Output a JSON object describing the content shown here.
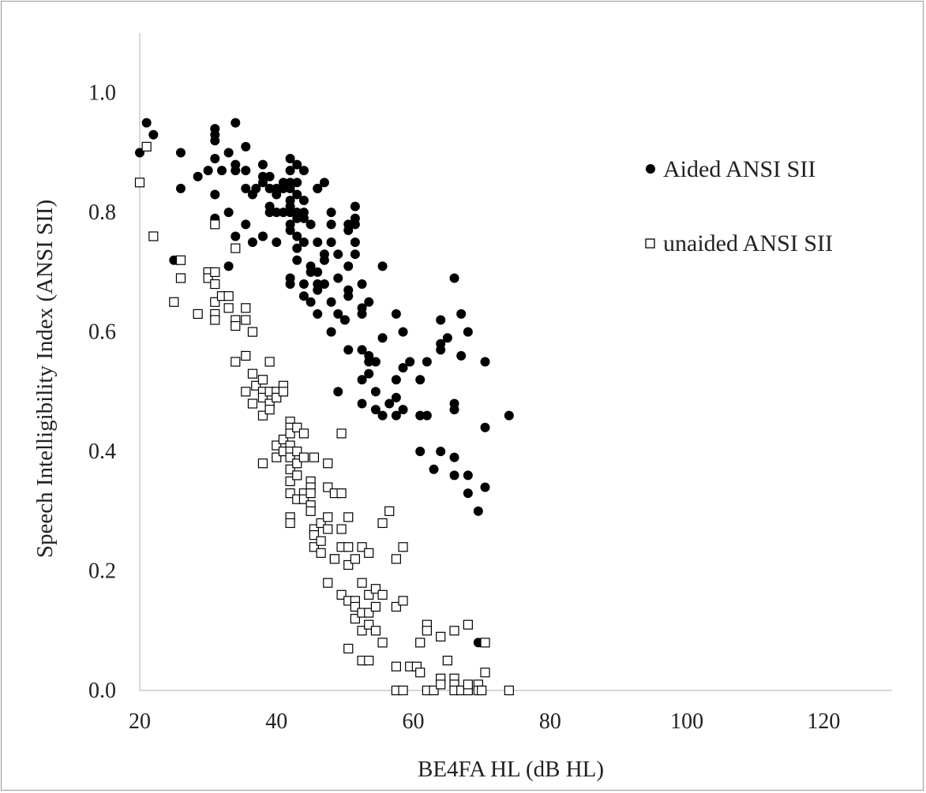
{
  "chart_data": {
    "type": "scatter",
    "title": "",
    "xlabel": "BE4FA HL  (dB HL)",
    "ylabel": "Speech Intelligibility Index (ANSI  SII)",
    "xlim": [
      20,
      130
    ],
    "ylim": [
      0,
      1.1
    ],
    "xticks": [
      "20",
      "40",
      "60",
      "80",
      "100",
      "120"
    ],
    "yticks": [
      "0.0",
      "0.2",
      "0.4",
      "0.6",
      "0.8",
      "1.0"
    ],
    "xtick_values": [
      20,
      40,
      60,
      80,
      100,
      120
    ],
    "ytick_values": [
      0,
      0.2,
      0.4,
      0.6,
      0.8,
      1.0
    ],
    "grid": false,
    "legend_position": "right",
    "series": [
      {
        "name": "Aided ANSI SII",
        "marker": "filled-circle",
        "color": "#000000",
        "points": [
          [
            20,
            0.9
          ],
          [
            21,
            0.95
          ],
          [
            22,
            0.93
          ],
          [
            25,
            0.72
          ],
          [
            26,
            0.9
          ],
          [
            26,
            0.84
          ],
          [
            28.5,
            0.86
          ],
          [
            30,
            0.87
          ],
          [
            31,
            0.94
          ],
          [
            31,
            0.93
          ],
          [
            31,
            0.92
          ],
          [
            31,
            0.89
          ],
          [
            31,
            0.83
          ],
          [
            31,
            0.79
          ],
          [
            31,
            0.7
          ],
          [
            32,
            0.87
          ],
          [
            33,
            0.9
          ],
          [
            33,
            0.8
          ],
          [
            33,
            0.71
          ],
          [
            34,
            0.95
          ],
          [
            34,
            0.88
          ],
          [
            34,
            0.87
          ],
          [
            34,
            0.76
          ],
          [
            35.5,
            0.91
          ],
          [
            35.5,
            0.87
          ],
          [
            35.5,
            0.84
          ],
          [
            35.5,
            0.78
          ],
          [
            36.5,
            0.83
          ],
          [
            36.5,
            0.75
          ],
          [
            37,
            0.84
          ],
          [
            38,
            0.88
          ],
          [
            38,
            0.86
          ],
          [
            38,
            0.85
          ],
          [
            38,
            0.76
          ],
          [
            38,
            0.76
          ],
          [
            39,
            0.86
          ],
          [
            39,
            0.84
          ],
          [
            39,
            0.81
          ],
          [
            39,
            0.8
          ],
          [
            40,
            0.84
          ],
          [
            40,
            0.83
          ],
          [
            40,
            0.8
          ],
          [
            40,
            0.75
          ],
          [
            41,
            0.85
          ],
          [
            41,
            0.84
          ],
          [
            41,
            0.8
          ],
          [
            42,
            0.89
          ],
          [
            42,
            0.87
          ],
          [
            42,
            0.85
          ],
          [
            42,
            0.84
          ],
          [
            42,
            0.82
          ],
          [
            42,
            0.81
          ],
          [
            42,
            0.8
          ],
          [
            42,
            0.78
          ],
          [
            42,
            0.77
          ],
          [
            42,
            0.69
          ],
          [
            42,
            0.68
          ],
          [
            43,
            0.88
          ],
          [
            43,
            0.85
          ],
          [
            43,
            0.83
          ],
          [
            43,
            0.8
          ],
          [
            43,
            0.79
          ],
          [
            43,
            0.76
          ],
          [
            43,
            0.74
          ],
          [
            43,
            0.72
          ],
          [
            44,
            0.87
          ],
          [
            44,
            0.82
          ],
          [
            44,
            0.8
          ],
          [
            44,
            0.79
          ],
          [
            44,
            0.75
          ],
          [
            44,
            0.66
          ],
          [
            44,
            0.68
          ],
          [
            45,
            0.78
          ],
          [
            45,
            0.71
          ],
          [
            45,
            0.7
          ],
          [
            45,
            0.65
          ],
          [
            46,
            0.84
          ],
          [
            46,
            0.84
          ],
          [
            46,
            0.75
          ],
          [
            46,
            0.7
          ],
          [
            46,
            0.68
          ],
          [
            46,
            0.67
          ],
          [
            46,
            0.63
          ],
          [
            47,
            0.85
          ],
          [
            47,
            0.73
          ],
          [
            47,
            0.72
          ],
          [
            47,
            0.68
          ],
          [
            48,
            0.8
          ],
          [
            48,
            0.78
          ],
          [
            48,
            0.75
          ],
          [
            48,
            0.65
          ],
          [
            48,
            0.6
          ],
          [
            49,
            0.73
          ],
          [
            49,
            0.69
          ],
          [
            49,
            0.63
          ],
          [
            49,
            0.5
          ],
          [
            50,
            0.62
          ],
          [
            50,
            0.62
          ],
          [
            50.5,
            0.78
          ],
          [
            50.5,
            0.77
          ],
          [
            50.5,
            0.71
          ],
          [
            50.5,
            0.67
          ],
          [
            50.5,
            0.66
          ],
          [
            50.5,
            0.57
          ],
          [
            51.5,
            0.81
          ],
          [
            51.5,
            0.79
          ],
          [
            51.5,
            0.78
          ],
          [
            51.5,
            0.75
          ],
          [
            51.5,
            0.73
          ],
          [
            52.5,
            0.68
          ],
          [
            52.5,
            0.64
          ],
          [
            52.5,
            0.63
          ],
          [
            52.5,
            0.57
          ],
          [
            52.5,
            0.52
          ],
          [
            52.5,
            0.48
          ],
          [
            53.5,
            0.65
          ],
          [
            53.5,
            0.56
          ],
          [
            53.5,
            0.55
          ],
          [
            53.5,
            0.53
          ],
          [
            54.5,
            0.55
          ],
          [
            54.5,
            0.5
          ],
          [
            54.5,
            0.47
          ],
          [
            55.5,
            0.71
          ],
          [
            55.5,
            0.59
          ],
          [
            55.5,
            0.46
          ],
          [
            56.5,
            0.48
          ],
          [
            57.5,
            0.63
          ],
          [
            57.5,
            0.52
          ],
          [
            57.5,
            0.49
          ],
          [
            57.5,
            0.46
          ],
          [
            58.5,
            0.6
          ],
          [
            58.5,
            0.54
          ],
          [
            58.5,
            0.47
          ],
          [
            59.5,
            0.55
          ],
          [
            61,
            0.52
          ],
          [
            61,
            0.46
          ],
          [
            61,
            0.4
          ],
          [
            62,
            0.55
          ],
          [
            62,
            0.46
          ],
          [
            63,
            0.37
          ],
          [
            64,
            0.62
          ],
          [
            64,
            0.58
          ],
          [
            64,
            0.57
          ],
          [
            64,
            0.4
          ],
          [
            65,
            0.59
          ],
          [
            66,
            0.69
          ],
          [
            66,
            0.48
          ],
          [
            66,
            0.47
          ],
          [
            66,
            0.39
          ],
          [
            66,
            0.36
          ],
          [
            67,
            0.63
          ],
          [
            67,
            0.56
          ],
          [
            68,
            0.6
          ],
          [
            68,
            0.36
          ],
          [
            68,
            0.33
          ],
          [
            69.5,
            0.3
          ],
          [
            70.5,
            0.55
          ],
          [
            70.5,
            0.44
          ],
          [
            70.5,
            0.34
          ],
          [
            74,
            0.46
          ],
          [
            69.5,
            0.08
          ]
        ]
      },
      {
        "name": "unaided ANSI SII",
        "marker": "open-square",
        "color": "#000000",
        "points": [
          [
            20,
            0.85
          ],
          [
            21,
            0.91
          ],
          [
            22,
            0.76
          ],
          [
            25,
            0.65
          ],
          [
            26,
            0.72
          ],
          [
            26,
            0.69
          ],
          [
            28.5,
            0.63
          ],
          [
            30,
            0.7
          ],
          [
            30,
            0.69
          ],
          [
            31,
            0.78
          ],
          [
            31,
            0.7
          ],
          [
            31,
            0.68
          ],
          [
            31,
            0.65
          ],
          [
            31,
            0.63
          ],
          [
            31,
            0.62
          ],
          [
            32,
            0.66
          ],
          [
            33,
            0.66
          ],
          [
            33,
            0.64
          ],
          [
            34,
            0.74
          ],
          [
            34,
            0.62
          ],
          [
            34,
            0.61
          ],
          [
            34,
            0.55
          ],
          [
            35.5,
            0.64
          ],
          [
            35.5,
            0.62
          ],
          [
            35.5,
            0.56
          ],
          [
            35.5,
            0.5
          ],
          [
            36.5,
            0.6
          ],
          [
            36.5,
            0.53
          ],
          [
            36.5,
            0.48
          ],
          [
            37,
            0.51
          ],
          [
            38,
            0.52
          ],
          [
            38,
            0.5
          ],
          [
            38,
            0.49
          ],
          [
            38,
            0.46
          ],
          [
            38,
            0.38
          ],
          [
            39,
            0.55
          ],
          [
            39,
            0.5
          ],
          [
            39,
            0.48
          ],
          [
            39,
            0.47
          ],
          [
            40,
            0.5
          ],
          [
            40,
            0.49
          ],
          [
            40,
            0.41
          ],
          [
            40,
            0.39
          ],
          [
            41,
            0.51
          ],
          [
            41,
            0.5
          ],
          [
            41,
            0.42
          ],
          [
            41,
            0.4
          ],
          [
            42,
            0.45
          ],
          [
            42,
            0.44
          ],
          [
            42,
            0.43
          ],
          [
            42,
            0.41
          ],
          [
            42,
            0.4
          ],
          [
            42,
            0.39
          ],
          [
            42,
            0.37
          ],
          [
            42,
            0.35
          ],
          [
            42,
            0.33
          ],
          [
            42,
            0.29
          ],
          [
            42,
            0.28
          ],
          [
            43,
            0.44
          ],
          [
            43,
            0.4
          ],
          [
            43,
            0.38
          ],
          [
            43,
            0.36
          ],
          [
            43,
            0.32
          ],
          [
            44,
            0.43
          ],
          [
            44,
            0.39
          ],
          [
            44,
            0.33
          ],
          [
            44,
            0.32
          ],
          [
            45,
            0.35
          ],
          [
            45,
            0.34
          ],
          [
            45,
            0.33
          ],
          [
            45,
            0.31
          ],
          [
            45,
            0.3
          ],
          [
            45.5,
            0.39
          ],
          [
            45.5,
            0.27
          ],
          [
            45.5,
            0.26
          ],
          [
            45.5,
            0.24
          ],
          [
            46.5,
            0.28
          ],
          [
            46.5,
            0.25
          ],
          [
            46.5,
            0.23
          ],
          [
            47.5,
            0.38
          ],
          [
            47.5,
            0.34
          ],
          [
            47.5,
            0.29
          ],
          [
            47.5,
            0.27
          ],
          [
            47.5,
            0.18
          ],
          [
            48.5,
            0.33
          ],
          [
            48.5,
            0.22
          ],
          [
            48.5,
            0.22
          ],
          [
            49.5,
            0.43
          ],
          [
            49.5,
            0.33
          ],
          [
            49.5,
            0.27
          ],
          [
            49.5,
            0.24
          ],
          [
            49.5,
            0.16
          ],
          [
            50.5,
            0.29
          ],
          [
            50.5,
            0.24
          ],
          [
            50.5,
            0.21
          ],
          [
            50.5,
            0.15
          ],
          [
            50.5,
            0.07
          ],
          [
            51.5,
            0.22
          ],
          [
            51.5,
            0.15
          ],
          [
            51.5,
            0.14
          ],
          [
            51.5,
            0.12
          ],
          [
            52.5,
            0.24
          ],
          [
            52.5,
            0.18
          ],
          [
            52.5,
            0.13
          ],
          [
            52.5,
            0.1
          ],
          [
            52.5,
            0.05
          ],
          [
            53.5,
            0.23
          ],
          [
            53.5,
            0.16
          ],
          [
            53.5,
            0.13
          ],
          [
            53.5,
            0.11
          ],
          [
            53.5,
            0.05
          ],
          [
            54.5,
            0.17
          ],
          [
            54.5,
            0.14
          ],
          [
            54.5,
            0.1
          ],
          [
            55.5,
            0.28
          ],
          [
            55.5,
            0.16
          ],
          [
            55.5,
            0.08
          ],
          [
            56.5,
            0.3
          ],
          [
            57.5,
            0.22
          ],
          [
            57.5,
            0.14
          ],
          [
            57.5,
            0.04
          ],
          [
            57.5,
            0.0
          ],
          [
            58.5,
            0.24
          ],
          [
            58.5,
            0.15
          ],
          [
            58.5,
            0.0
          ],
          [
            59.5,
            0.04
          ],
          [
            60.5,
            0.04
          ],
          [
            61,
            0.08
          ],
          [
            61,
            0.03
          ],
          [
            62,
            0.11
          ],
          [
            62,
            0.1
          ],
          [
            62,
            0.0
          ],
          [
            63,
            0.0
          ],
          [
            64,
            0.02
          ],
          [
            64,
            0.01
          ],
          [
            64,
            0.09
          ],
          [
            65,
            0.05
          ],
          [
            66,
            0.1
          ],
          [
            66,
            0.02
          ],
          [
            66,
            0.01
          ],
          [
            66,
            0.0
          ],
          [
            67,
            0.0
          ],
          [
            68,
            0.0
          ],
          [
            68,
            0.11
          ],
          [
            68,
            0.01
          ],
          [
            69.5,
            0.01
          ],
          [
            69.5,
            0.0
          ],
          [
            70,
            0.0
          ],
          [
            70.5,
            0.03
          ],
          [
            70.5,
            0.08
          ],
          [
            74,
            0.0
          ]
        ]
      }
    ]
  }
}
